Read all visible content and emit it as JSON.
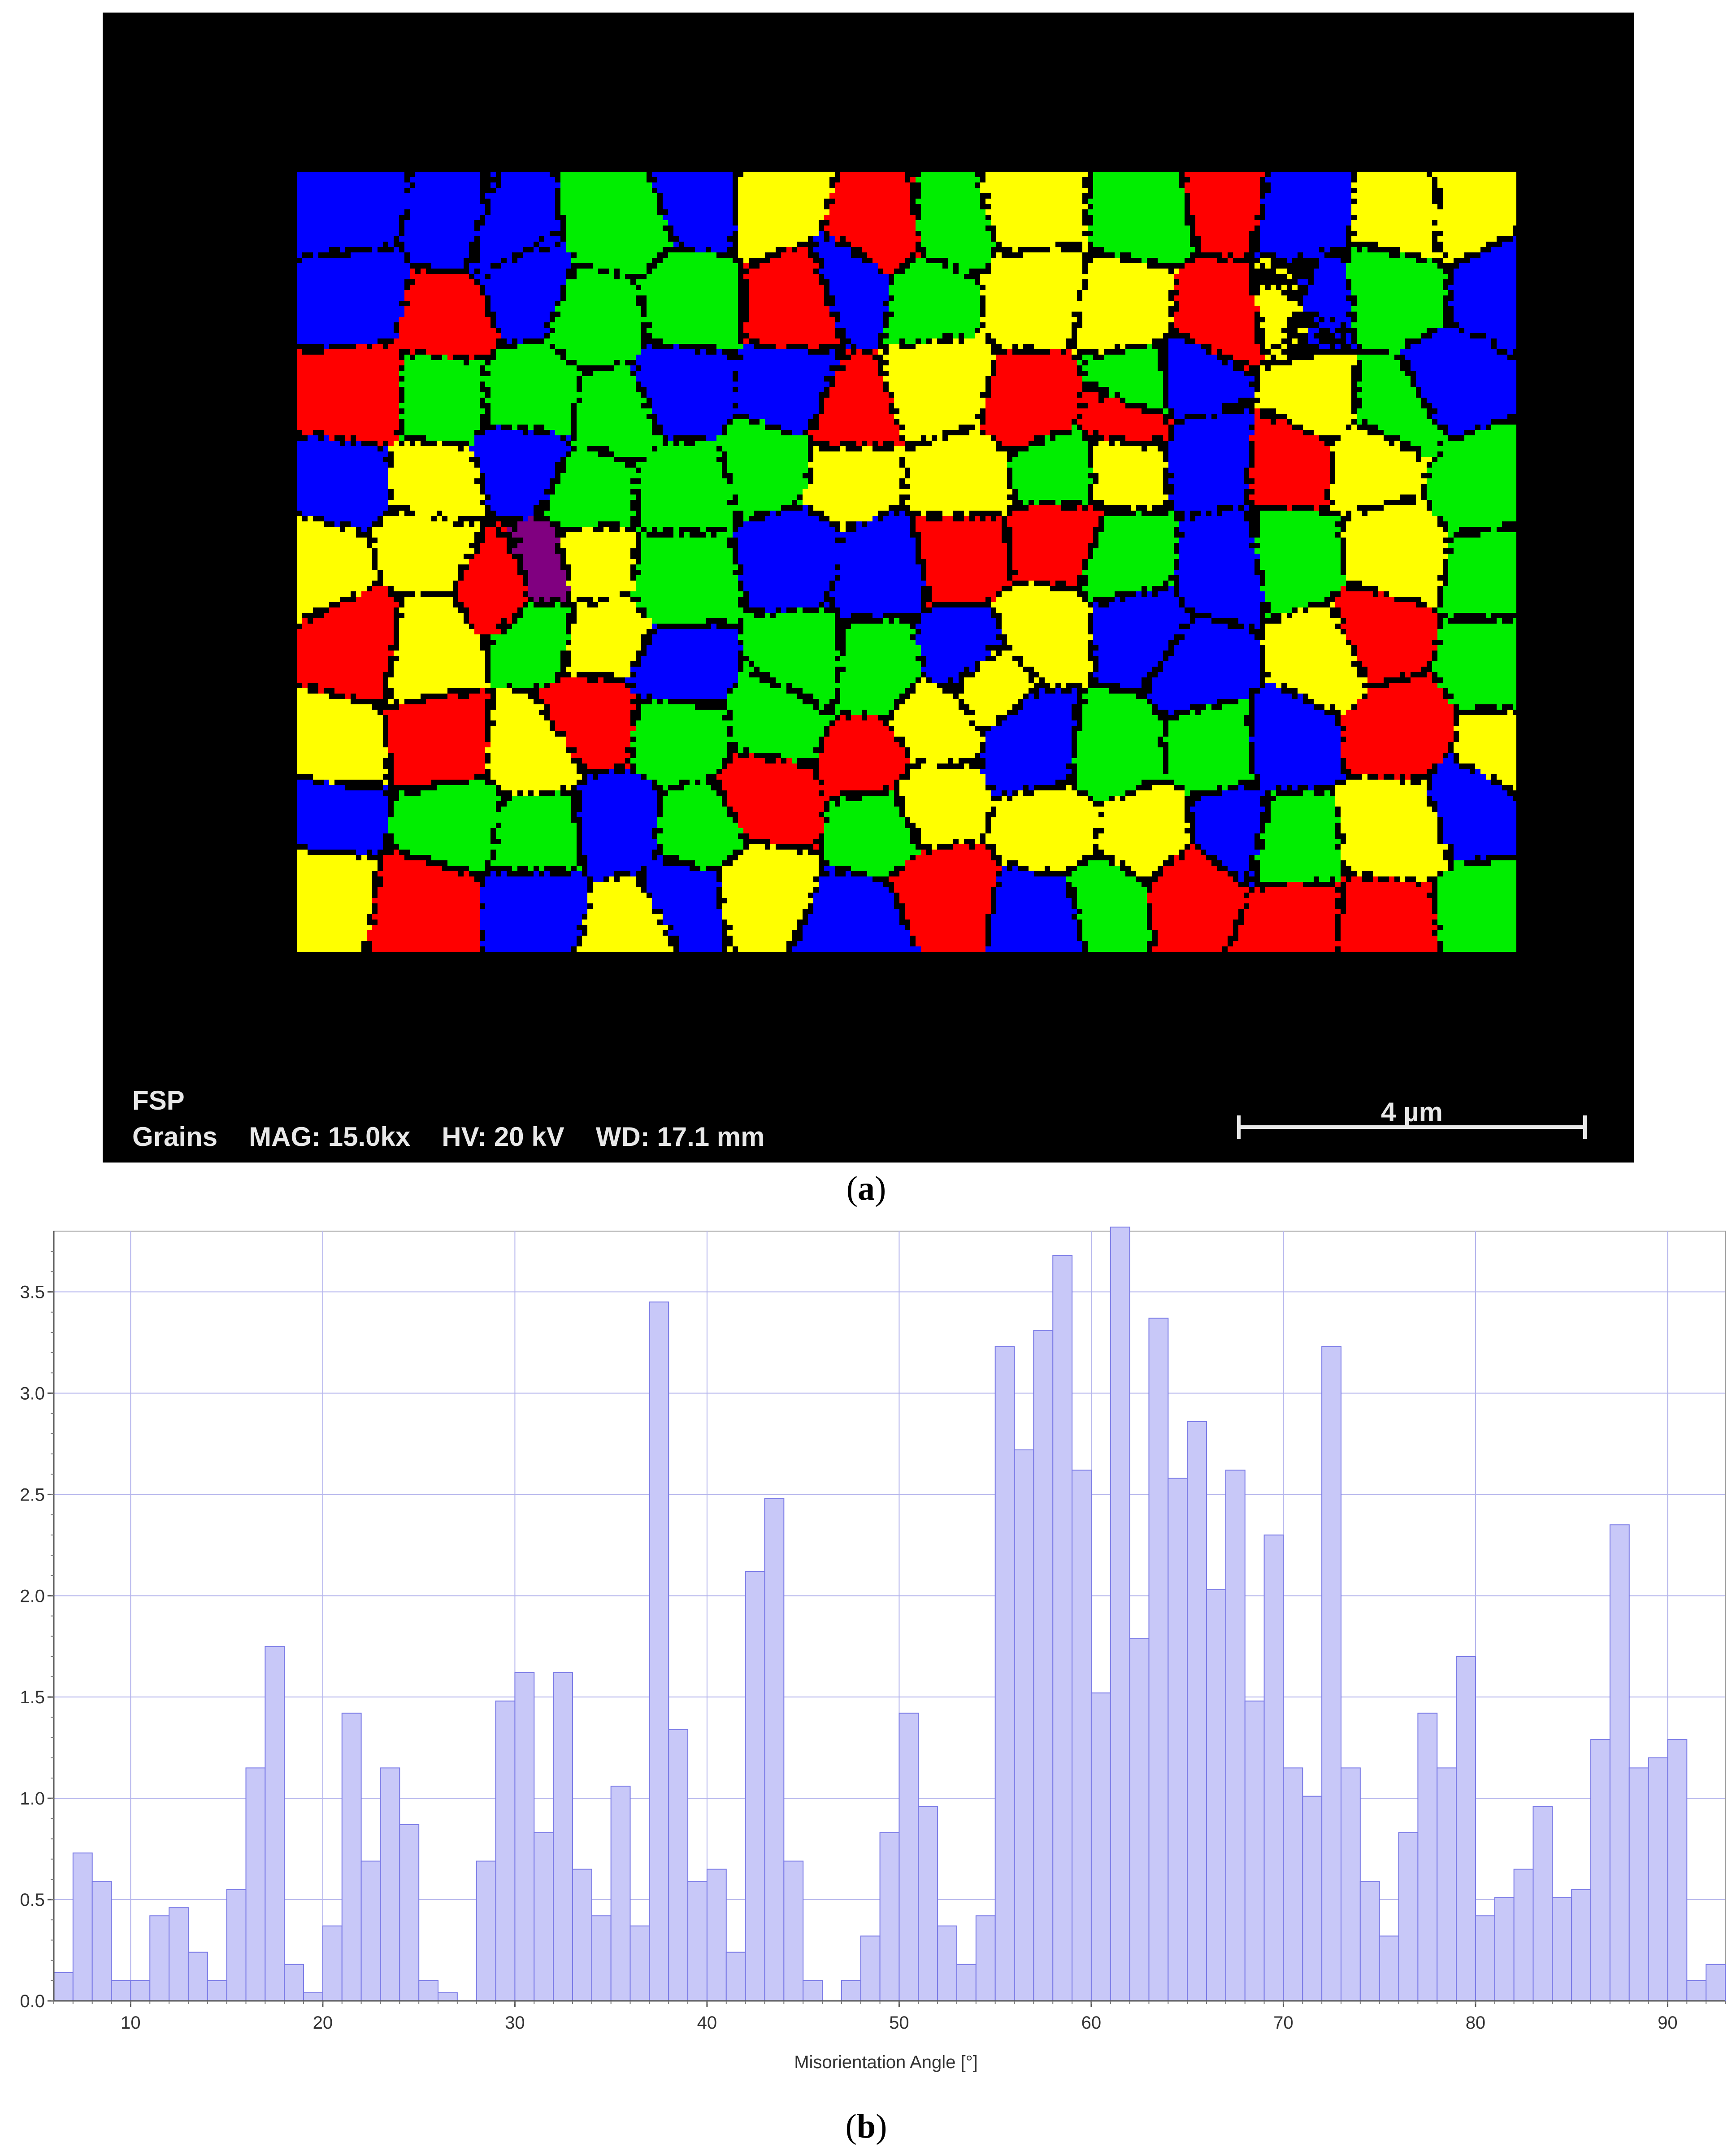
{
  "panel_a": {
    "caption_letter": "a",
    "label_line1": "FSP",
    "label_grains": "Grains",
    "label_mag": "MAG: 15.0kx",
    "label_hv": "HV: 20 kV",
    "label_wd": "WD: 17.1 mm",
    "scalebar_label": "4 µm",
    "grain_colors": [
      "#ff0000",
      "#00ee00",
      "#0000ff",
      "#ffff00",
      "#800080"
    ]
  },
  "panel_b": {
    "caption_letter": "b"
  },
  "chart_data": {
    "type": "bar",
    "xlabel": "Misorientation Angle [°]",
    "ylabel": "",
    "xlim": [
      6,
      93
    ],
    "ylim": [
      0,
      3.8
    ],
    "xticks": [
      10,
      20,
      30,
      40,
      50,
      60,
      70,
      80,
      90
    ],
    "yticks": [
      0.0,
      0.5,
      1.0,
      1.5,
      2.0,
      2.5,
      3.0,
      3.5
    ],
    "ytick_labels": [
      "0.0",
      "0.5",
      "1.0",
      "1.5",
      "2.0",
      "2.5",
      "3.0",
      "3.5"
    ],
    "bin_width": 1,
    "grid": true,
    "bar_fill": "#c8c8f8",
    "bar_stroke": "#7a7ae6",
    "grid_color": "#b4b4ec",
    "x": [
      6,
      7,
      8,
      9,
      10,
      11,
      12,
      13,
      14,
      15,
      16,
      17,
      18,
      19,
      20,
      21,
      22,
      23,
      24,
      25,
      26,
      27,
      28,
      29,
      30,
      31,
      32,
      33,
      34,
      35,
      36,
      37,
      38,
      39,
      40,
      41,
      42,
      43,
      44,
      45,
      46,
      47,
      48,
      49,
      50,
      51,
      52,
      53,
      54,
      55,
      56,
      57,
      58,
      59,
      60,
      61,
      62,
      63,
      64,
      65,
      66,
      67,
      68,
      69,
      70,
      71,
      72,
      73,
      74,
      75,
      76,
      77,
      78,
      79,
      80,
      81,
      82,
      83,
      84,
      85,
      86,
      87,
      88,
      89,
      90,
      91,
      92
    ],
    "values": [
      0.14,
      0.73,
      0.59,
      0.1,
      0.1,
      0.42,
      0.46,
      0.24,
      0.1,
      0.55,
      1.15,
      1.75,
      0.18,
      0.04,
      0.37,
      1.42,
      0.69,
      1.15,
      0.87,
      0.1,
      0.04,
      0.0,
      0.69,
      1.48,
      1.62,
      0.83,
      1.62,
      0.65,
      0.42,
      1.06,
      0.37,
      3.45,
      1.34,
      0.59,
      0.65,
      0.24,
      2.12,
      2.48,
      0.69,
      0.1,
      0.0,
      0.1,
      0.32,
      0.83,
      1.42,
      0.96,
      0.37,
      0.18,
      0.42,
      3.23,
      2.72,
      3.31,
      3.68,
      2.62,
      1.52,
      3.82,
      1.79,
      3.37,
      2.58,
      2.86,
      2.03,
      2.62,
      1.48,
      2.3,
      1.15,
      1.01,
      3.23,
      1.15,
      0.59,
      0.32,
      0.83,
      1.42,
      1.15,
      1.7,
      0.42,
      0.51,
      0.65,
      0.96,
      0.51,
      0.55,
      1.29,
      2.35,
      1.15,
      1.2,
      1.29,
      0.1,
      0.18
    ]
  }
}
